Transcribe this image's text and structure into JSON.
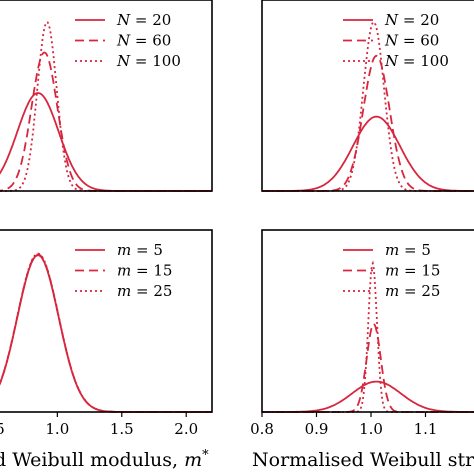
{
  "chart_data": [
    {
      "type": "line",
      "panel": "top-left",
      "xlim": [
        0.4,
        2.2
      ],
      "ylim": [
        0,
        1
      ],
      "xticks": [],
      "xlabel": "",
      "legend": {
        "placement": "top-right"
      },
      "series": [
        {
          "name": "N = 20",
          "var": "N",
          "val": "20",
          "dash": "solid",
          "mean": 0.85,
          "sd": 0.16,
          "peak": 0.58
        },
        {
          "name": "N = 60",
          "var": "N",
          "val": "60",
          "dash": "dashed",
          "mean": 0.9,
          "sd": 0.1,
          "peak": 0.82
        },
        {
          "name": "N = 100",
          "var": "N",
          "val": "100",
          "dash": "dotted",
          "mean": 0.92,
          "sd": 0.075,
          "peak": 1.0
        }
      ]
    },
    {
      "type": "line",
      "panel": "top-right",
      "xlim": [
        0.8,
        1.2
      ],
      "ylim": [
        0,
        1
      ],
      "xticks": [],
      "xlabel": "",
      "legend": {
        "placement": "top-right"
      },
      "series": [
        {
          "name": "N = 20",
          "var": "N",
          "val": "20",
          "dash": "solid",
          "mean": 1.01,
          "sd": 0.043,
          "peak": 0.44
        },
        {
          "name": "N = 60",
          "var": "N",
          "val": "60",
          "dash": "dashed",
          "mean": 1.01,
          "sd": 0.024,
          "peak": 0.8
        },
        {
          "name": "N = 100",
          "var": "N",
          "val": "100",
          "dash": "dotted",
          "mean": 1.005,
          "sd": 0.019,
          "peak": 1.0
        }
      ]
    },
    {
      "type": "line",
      "panel": "bottom-left",
      "xlim": [
        0.4,
        2.2
      ],
      "ylim": [
        0,
        1
      ],
      "xticks": [
        "0.5",
        "1.0",
        "1.5",
        "2.0"
      ],
      "xtick_values": [
        0.5,
        1.0,
        1.5,
        2.0
      ],
      "xlabel": "d Weibull modulus, m*",
      "legend": {
        "placement": "top-right"
      },
      "series": [
        {
          "name": "m = 5",
          "var": "m",
          "val": "5",
          "dash": "solid",
          "mean": 0.85,
          "sd": 0.16,
          "peak": 0.98
        },
        {
          "name": "m = 15",
          "var": "m",
          "val": "15",
          "dash": "dashed",
          "mean": 0.85,
          "sd": 0.16,
          "peak": 0.985
        },
        {
          "name": "m = 25",
          "var": "m",
          "val": "25",
          "dash": "dotted",
          "mean": 0.85,
          "sd": 0.16,
          "peak": 0.99
        }
      ]
    },
    {
      "type": "line",
      "panel": "bottom-right",
      "xlim": [
        0.8,
        1.2
      ],
      "ylim": [
        0,
        1
      ],
      "xticks": [
        "0.8",
        "0.9",
        "1.0",
        "1.1"
      ],
      "xtick_values": [
        0.8,
        0.9,
        1.0,
        1.1
      ],
      "xlabel": "Normalised Weibull stre",
      "legend": {
        "placement": "top-right"
      },
      "series": [
        {
          "name": "m = 5",
          "var": "m",
          "val": "5",
          "dash": "solid",
          "mean": 1.01,
          "sd": 0.045,
          "peak": 0.19
        },
        {
          "name": "m = 15",
          "var": "m",
          "val": "15",
          "dash": "dashed",
          "mean": 1.005,
          "sd": 0.013,
          "peak": 0.55
        },
        {
          "name": "m = 25",
          "var": "m",
          "val": "25",
          "dash": "dotted",
          "mean": 1.003,
          "sd": 0.008,
          "peak": 0.93
        }
      ]
    }
  ],
  "colors": {
    "curve": "#d7263d",
    "axes": "#000000"
  }
}
